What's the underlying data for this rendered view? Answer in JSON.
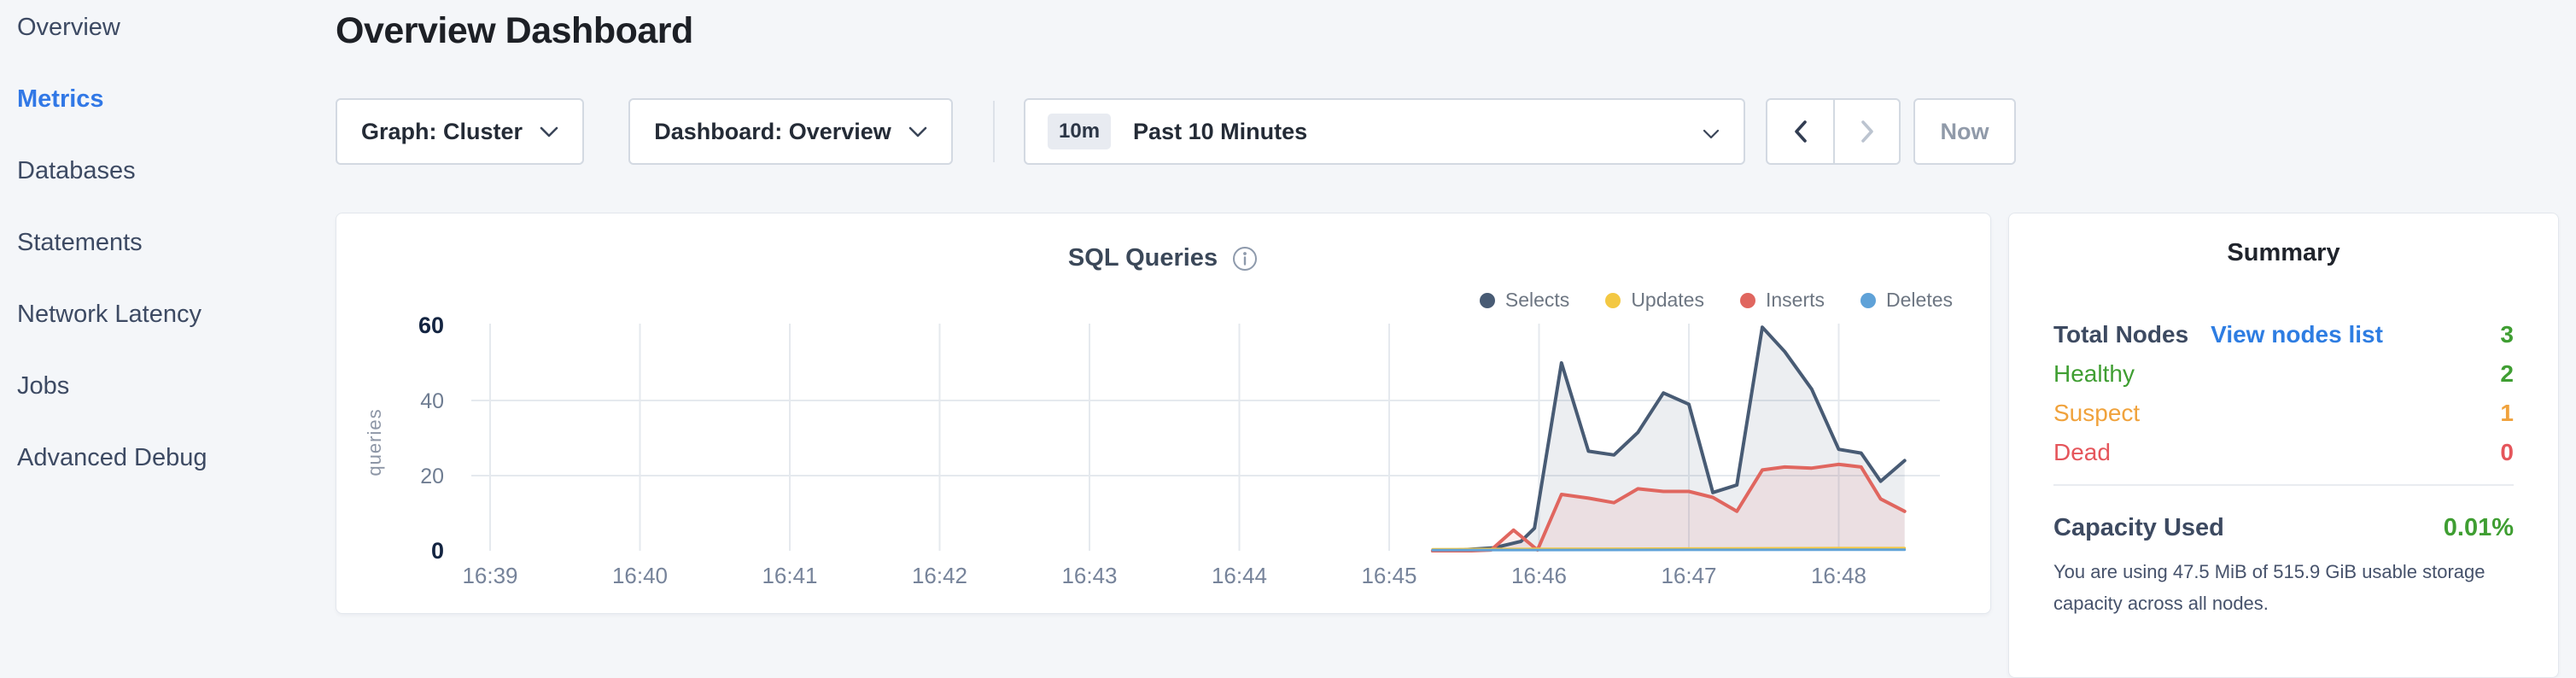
{
  "header": {
    "title": "Overview Dashboard"
  },
  "sidebar": {
    "items": [
      {
        "label": "Overview",
        "active": false
      },
      {
        "label": "Metrics",
        "active": true
      },
      {
        "label": "Databases",
        "active": false
      },
      {
        "label": "Statements",
        "active": false
      },
      {
        "label": "Network Latency",
        "active": false
      },
      {
        "label": "Jobs",
        "active": false
      },
      {
        "label": "Advanced Debug",
        "active": false
      }
    ]
  },
  "toolbar": {
    "graph_label": "Graph: Cluster",
    "dashboard_label": "Dashboard: Overview",
    "time_range_badge": "10m",
    "time_range_label": "Past 10 Minutes",
    "now_label": "Now",
    "icons": [
      "chevron-down",
      "chevron-left",
      "chevron-right"
    ]
  },
  "chart": {
    "info_icon": "info-circle"
  },
  "chart_data": {
    "type": "area",
    "title": "SQL Queries",
    "xlabel": "",
    "ylabel": "queries",
    "x_ticks": [
      "16:39",
      "16:40",
      "16:41",
      "16:42",
      "16:43",
      "16:44",
      "16:45",
      "16:46",
      "16:47",
      "16:48"
    ],
    "y_ticks": [
      0,
      20,
      40,
      60
    ],
    "ylim": [
      0,
      60
    ],
    "x_domain_minutes": [
      0,
      9.65
    ],
    "grid": true,
    "legend_position": "top-right",
    "series": [
      {
        "name": "Selects",
        "color": "#485b74",
        "fill": "rgba(72,91,116,0.10)",
        "points": [
          [
            6.29,
            0
          ],
          [
            6.5,
            0.3
          ],
          [
            6.7,
            0.8
          ],
          [
            6.88,
            2.5
          ],
          [
            6.97,
            6
          ],
          [
            7.15,
            50
          ],
          [
            7.33,
            26.5
          ],
          [
            7.5,
            25.5
          ],
          [
            7.66,
            31.5
          ],
          [
            7.83,
            42
          ],
          [
            8.0,
            39
          ],
          [
            8.16,
            15.5
          ],
          [
            8.32,
            17.5
          ],
          [
            8.49,
            59.5
          ],
          [
            8.64,
            53
          ],
          [
            8.82,
            43
          ],
          [
            9.0,
            27
          ],
          [
            9.15,
            26
          ],
          [
            9.28,
            18.5
          ],
          [
            9.44,
            24
          ]
        ]
      },
      {
        "name": "Updates",
        "color": "#f3c843",
        "fill": "none",
        "points": [
          [
            6.29,
            0.4
          ],
          [
            7.0,
            0.5
          ],
          [
            8.0,
            0.6
          ],
          [
            9.0,
            0.7
          ],
          [
            9.44,
            0.7
          ]
        ]
      },
      {
        "name": "Inserts",
        "color": "#e0665f",
        "fill": "rgba(224,102,95,0.10)",
        "points": [
          [
            6.29,
            0
          ],
          [
            6.55,
            0
          ],
          [
            6.68,
            0.2
          ],
          [
            6.83,
            5.5
          ],
          [
            6.99,
            0.2
          ],
          [
            7.15,
            15
          ],
          [
            7.33,
            14
          ],
          [
            7.5,
            12.8
          ],
          [
            7.66,
            16.5
          ],
          [
            7.83,
            15.8
          ],
          [
            8.0,
            15.8
          ],
          [
            8.16,
            14.2
          ],
          [
            8.32,
            10.5
          ],
          [
            8.49,
            21.5
          ],
          [
            8.64,
            22.3
          ],
          [
            8.82,
            22
          ],
          [
            9.0,
            23
          ],
          [
            9.15,
            22.3
          ],
          [
            9.28,
            13.8
          ],
          [
            9.44,
            10.5
          ]
        ]
      },
      {
        "name": "Deletes",
        "color": "#5fa2d8",
        "fill": "none",
        "points": [
          [
            6.29,
            0.15
          ],
          [
            7.0,
            0.2
          ],
          [
            8.0,
            0.25
          ],
          [
            9.0,
            0.3
          ],
          [
            9.44,
            0.3
          ]
        ]
      }
    ]
  },
  "summary": {
    "title": "Summary",
    "total_nodes_label": "Total Nodes",
    "view_nodes_link": "View nodes list",
    "total_nodes_value": "3",
    "statuses": [
      {
        "label": "Healthy",
        "value": "2",
        "color": "#3f9e32"
      },
      {
        "label": "Suspect",
        "value": "1",
        "color": "#f0a23c"
      },
      {
        "label": "Dead",
        "value": "0",
        "color": "#e5555b"
      }
    ],
    "capacity_label": "Capacity Used",
    "capacity_value": "0.01%",
    "capacity_description": "You are using 47.5 MiB of 515.9 GiB usable storage capacity across all nodes."
  },
  "colors": {
    "active_nav": "#3178e6",
    "link": "#2e7de2",
    "green": "#3f9e32",
    "orange": "#f0a23c",
    "red": "#e5555b",
    "page_background": "#f4f6f9"
  }
}
